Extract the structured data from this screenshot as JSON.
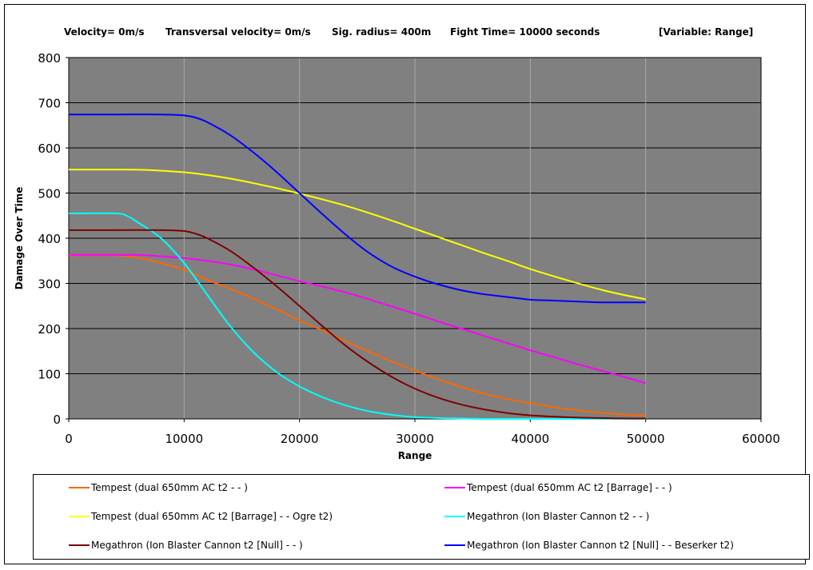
{
  "header": {
    "velocity": "Velocity= 0m/s",
    "transversal": "Transversal velocity= 0m/s",
    "sig_radius": "Sig. radius= 400m",
    "fight_time": "Fight Time= 10000 seconds",
    "variable": "[Variable: Range]"
  },
  "chart_data": {
    "type": "line",
    "xlabel": "Range",
    "ylabel": "Damage Over Time",
    "xlim": [
      0,
      60000
    ],
    "ylim": [
      0,
      800
    ],
    "xticks": [
      "0",
      "10000",
      "20000",
      "30000",
      "40000",
      "50000",
      "60000"
    ],
    "yticks": [
      "0",
      "100",
      "200",
      "300",
      "400",
      "500",
      "600",
      "700",
      "800"
    ],
    "grid": true,
    "legend_position": "bottom",
    "plot_background": "#808080",
    "series": [
      {
        "name": "Tempest (dual 650mm AC t2 -  - )",
        "color": "#ff6600",
        "x": [
          0,
          4000,
          6000,
          8000,
          10000,
          12000,
          14000,
          16000,
          18000,
          20000,
          22000,
          24000,
          26000,
          28000,
          30000,
          32000,
          34000,
          36000,
          38000,
          40000,
          42000,
          44000,
          46000,
          48000,
          50000
        ],
        "y": [
          362,
          362,
          357,
          345,
          330,
          308,
          288,
          266,
          243,
          218,
          196,
          172,
          149,
          127,
          107,
          88,
          71,
          56,
          44,
          35,
          26,
          19,
          14,
          10,
          7
        ]
      },
      {
        "name": "Tempest (dual 650mm AC t2 [Barrage] -  - )",
        "color": "#ff00ff",
        "x": [
          0,
          4000,
          6000,
          8000,
          10000,
          12000,
          14000,
          16000,
          18000,
          20000,
          22000,
          24000,
          26000,
          28000,
          30000,
          32000,
          34000,
          36000,
          38000,
          40000,
          42000,
          44000,
          46000,
          48000,
          50000
        ],
        "y": [
          363,
          363,
          363,
          360,
          356,
          350,
          342,
          331,
          318,
          305,
          293,
          280,
          265,
          249,
          233,
          216,
          200,
          184,
          168,
          152,
          137,
          122,
          108,
          94,
          79
        ]
      },
      {
        "name": "Tempest (dual 650mm AC t2 [Barrage] -  - Ogre t2)",
        "color": "#ffff00",
        "x": [
          0,
          4000,
          7000,
          10000,
          12000,
          14000,
          16000,
          18000,
          20000,
          22000,
          24000,
          26000,
          28000,
          30000,
          32000,
          34000,
          36000,
          38000,
          40000,
          42000,
          44000,
          46000,
          48000,
          50000
        ],
        "y": [
          552,
          552,
          551,
          546,
          540,
          532,
          522,
          511,
          499,
          486,
          472,
          456,
          439,
          421,
          403,
          385,
          367,
          350,
          332,
          316,
          301,
          287,
          275,
          265
        ]
      },
      {
        "name": "Megathron (Ion Blaster Cannon t2 -  - )",
        "color": "#00ffff",
        "x": [
          0,
          4000,
          5000,
          6000,
          8000,
          10000,
          12000,
          14000,
          16000,
          18000,
          20000,
          22000,
          24000,
          26000,
          28000,
          30000,
          32000,
          34000,
          36000,
          40000,
          45000,
          50000
        ],
        "y": [
          455,
          455,
          450,
          435,
          400,
          345,
          275,
          205,
          148,
          104,
          72,
          48,
          30,
          17,
          9,
          4,
          2,
          1,
          0,
          0,
          0,
          0
        ]
      },
      {
        "name": "Megathron (Ion Blaster Cannon t2 [Null] -  - )",
        "color": "#800000",
        "x": [
          0,
          4000,
          8000,
          10000,
          11000,
          12000,
          14000,
          16000,
          18000,
          20000,
          22000,
          24000,
          26000,
          28000,
          30000,
          32000,
          34000,
          36000,
          38000,
          40000,
          42000,
          44000,
          46000,
          48000,
          50000
        ],
        "y": [
          418,
          418,
          418,
          416,
          410,
          400,
          372,
          335,
          294,
          250,
          205,
          162,
          125,
          93,
          67,
          47,
          32,
          21,
          13,
          8,
          5,
          3,
          2,
          1,
          1
        ]
      },
      {
        "name": "Megathron (Ion Blaster Cannon t2 [Null] -  - Beserker t2)",
        "color": "#0000ff",
        "x": [
          0,
          4000,
          8000,
          10000,
          11000,
          12000,
          14000,
          16000,
          18000,
          20000,
          22000,
          24000,
          26000,
          28000,
          30000,
          32000,
          34000,
          36000,
          38000,
          40000,
          42000,
          44000,
          46000,
          48000,
          50000
        ],
        "y": [
          674,
          674,
          674,
          672,
          667,
          657,
          628,
          590,
          547,
          500,
          453,
          408,
          368,
          337,
          315,
          298,
          285,
          276,
          270,
          264,
          262,
          260,
          258,
          258,
          258
        ]
      }
    ]
  }
}
